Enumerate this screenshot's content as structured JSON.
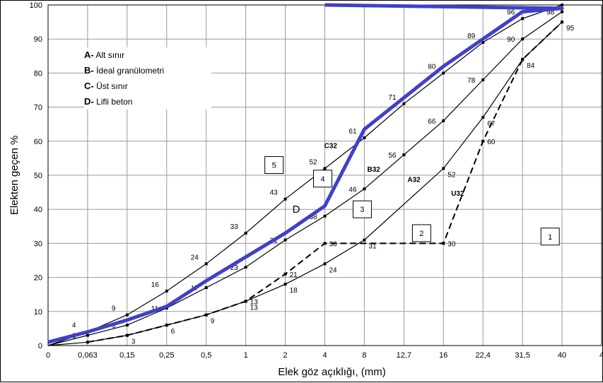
{
  "legend": {
    "items": [
      {
        "key": "A-",
        "text": "Alt sınır"
      },
      {
        "key": "B-",
        "text": "İdeal granülometri"
      },
      {
        "key": "C-",
        "text": "Üst sınır"
      },
      {
        "key": "D-",
        "text": "Lifli beton"
      }
    ]
  },
  "chart_data": {
    "type": "line",
    "xlabel": "Elek göz açıklığı, (mm)",
    "ylabel": "Elekten geçen %",
    "x_ticks": [
      "0",
      "0,063",
      "0,15",
      "0,25",
      "0,5",
      "1",
      "2",
      "4",
      "8",
      "12,7",
      "16",
      "22,4",
      "31,5",
      "40",
      "4"
    ],
    "y_ticks": [
      0,
      10,
      20,
      30,
      40,
      50,
      60,
      70,
      80,
      90,
      100
    ],
    "ylim": [
      0,
      100
    ],
    "grid": true,
    "series": [
      {
        "name": "A32",
        "color": "#000000",
        "style": "solid",
        "x": [
          "0",
          "0,063",
          "0,15",
          "0,25",
          "0,5",
          "1",
          "2",
          "4",
          "8",
          "16",
          "22,4",
          "31,5",
          "40"
        ],
        "values": [
          0,
          1,
          3,
          6,
          9,
          13,
          18,
          24,
          31,
          52,
          67,
          84,
          95
        ],
        "labels": [
          "",
          "",
          "3",
          "6",
          "9",
          "13",
          "18",
          "24",
          "31",
          "52",
          "67",
          "84",
          "95"
        ]
      },
      {
        "name": "B32",
        "color": "#000000",
        "style": "solid",
        "x": [
          "0",
          "0,063",
          "0,15",
          "0,25",
          "0,5",
          "1",
          "2",
          "4",
          "8",
          "12,7",
          "16",
          "22,4",
          "31,5",
          "40"
        ],
        "values": [
          0,
          3,
          6,
          11,
          17,
          23,
          31,
          38,
          46,
          56,
          66,
          78,
          90,
          98
        ],
        "labels": [
          "",
          "3",
          "6",
          "11",
          "17",
          "23",
          "31",
          "38",
          "46",
          "56",
          "66",
          "78",
          "90",
          "98"
        ]
      },
      {
        "name": "C32",
        "color": "#000000",
        "style": "solid",
        "x": [
          "0",
          "0,063",
          "0,15",
          "0,25",
          "0,5",
          "1",
          "2",
          "4",
          "8",
          "12,7",
          "16",
          "22,4",
          "31,5",
          "40"
        ],
        "values": [
          0,
          4,
          9,
          16,
          24,
          33,
          43,
          52,
          61,
          71,
          80,
          89,
          96,
          100
        ],
        "labels": [
          "",
          "4",
          "9",
          "16",
          "24",
          "33",
          "43",
          "52",
          "61",
          "71",
          "80",
          "89",
          "96",
          "100"
        ]
      },
      {
        "name": "U32",
        "color": "#000000",
        "style": "dashed",
        "x": [
          "0,063",
          "0,15",
          "0,25",
          "0,5",
          "1",
          "2",
          "4",
          "16",
          "22,4",
          "31,5",
          "40"
        ],
        "values": [
          1,
          3,
          6,
          9,
          13,
          21,
          30,
          30,
          60,
          84,
          95
        ],
        "labels": [
          "",
          "",
          "",
          "",
          "13",
          "21",
          "30",
          "30",
          "60",
          "",
          ""
        ]
      },
      {
        "name": "D",
        "color": "#4040c8",
        "style": "bold",
        "x": [
          "0",
          "0,063",
          "0,15",
          "0,25",
          "0,5",
          "1",
          "2",
          "4",
          "8",
          "16",
          "22,4",
          "31,5",
          "40",
          "4"
        ],
        "values": [
          1,
          4,
          7.5,
          11.5,
          19,
          26,
          33,
          41,
          63.5,
          82,
          90,
          98,
          99,
          100
        ],
        "labels": []
      }
    ],
    "annotations": [
      "C32",
      "B32",
      "A32",
      "U32",
      "D"
    ],
    "zones": [
      "1",
      "2",
      "3",
      "4",
      "5"
    ]
  }
}
